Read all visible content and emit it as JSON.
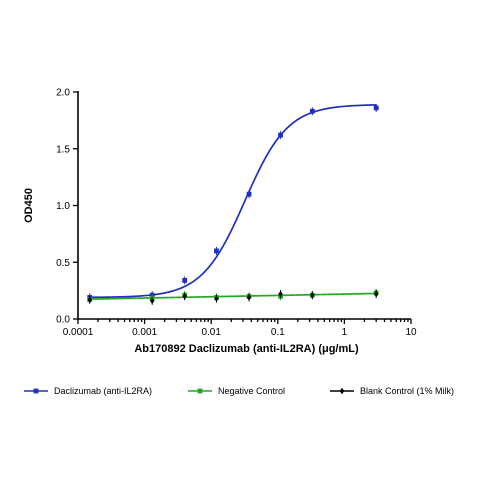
{
  "chart_data": {
    "type": "scatter",
    "xlabel": "Ab170892 Daclizumab (anti-IL2RA) (μg/mL)",
    "ylabel": "OD450",
    "x_scale": "log",
    "xlim": [
      0.0001,
      10
    ],
    "ylim": [
      0,
      2.0
    ],
    "x_ticks": [
      0.0001,
      0.001,
      0.01,
      0.1,
      1,
      10
    ],
    "x_tick_labels": [
      "0.0001",
      "0.001",
      "0.01",
      "0.1",
      "1",
      "10"
    ],
    "y_ticks": [
      0,
      0.5,
      1.0,
      1.5,
      2.0
    ],
    "y_tick_labels": [
      "0.0",
      "0.5",
      "1.0",
      "1.5",
      "2.0"
    ],
    "grid": false,
    "legend_position": "bottom",
    "series": [
      {
        "name": "Daclizumab (anti-IL2RA)",
        "color": "#1f2fbf",
        "marker": "square",
        "x": [
          0.00015,
          0.0013,
          0.004,
          0.012,
          0.037,
          0.11,
          0.33,
          3.0
        ],
        "y": [
          0.19,
          0.21,
          0.34,
          0.6,
          1.1,
          1.62,
          1.83,
          1.86
        ],
        "fit": {
          "bottom": 0.19,
          "top": 1.89,
          "ec50": 0.032,
          "hill": 1.35
        }
      },
      {
        "name": "Negative Control",
        "color": "#22aa22",
        "marker": "square",
        "x": [
          0.00015,
          0.0013,
          0.004,
          0.012,
          0.037,
          0.11,
          0.33,
          3.0
        ],
        "y": [
          0.17,
          0.18,
          0.21,
          0.19,
          0.2,
          0.2,
          0.21,
          0.23
        ],
        "fit": {
          "type": "linear_log",
          "y_start": 0.175,
          "y_end": 0.225
        }
      },
      {
        "name": "Blank Control (1% Milk)",
        "color": "#000000",
        "marker": "diamond",
        "x": [
          0.00015,
          0.0013,
          0.004,
          0.012,
          0.037,
          0.11,
          0.33,
          3.0
        ],
        "y": [
          0.17,
          0.16,
          0.2,
          0.18,
          0.19,
          0.22,
          0.21,
          0.22
        ]
      }
    ]
  }
}
